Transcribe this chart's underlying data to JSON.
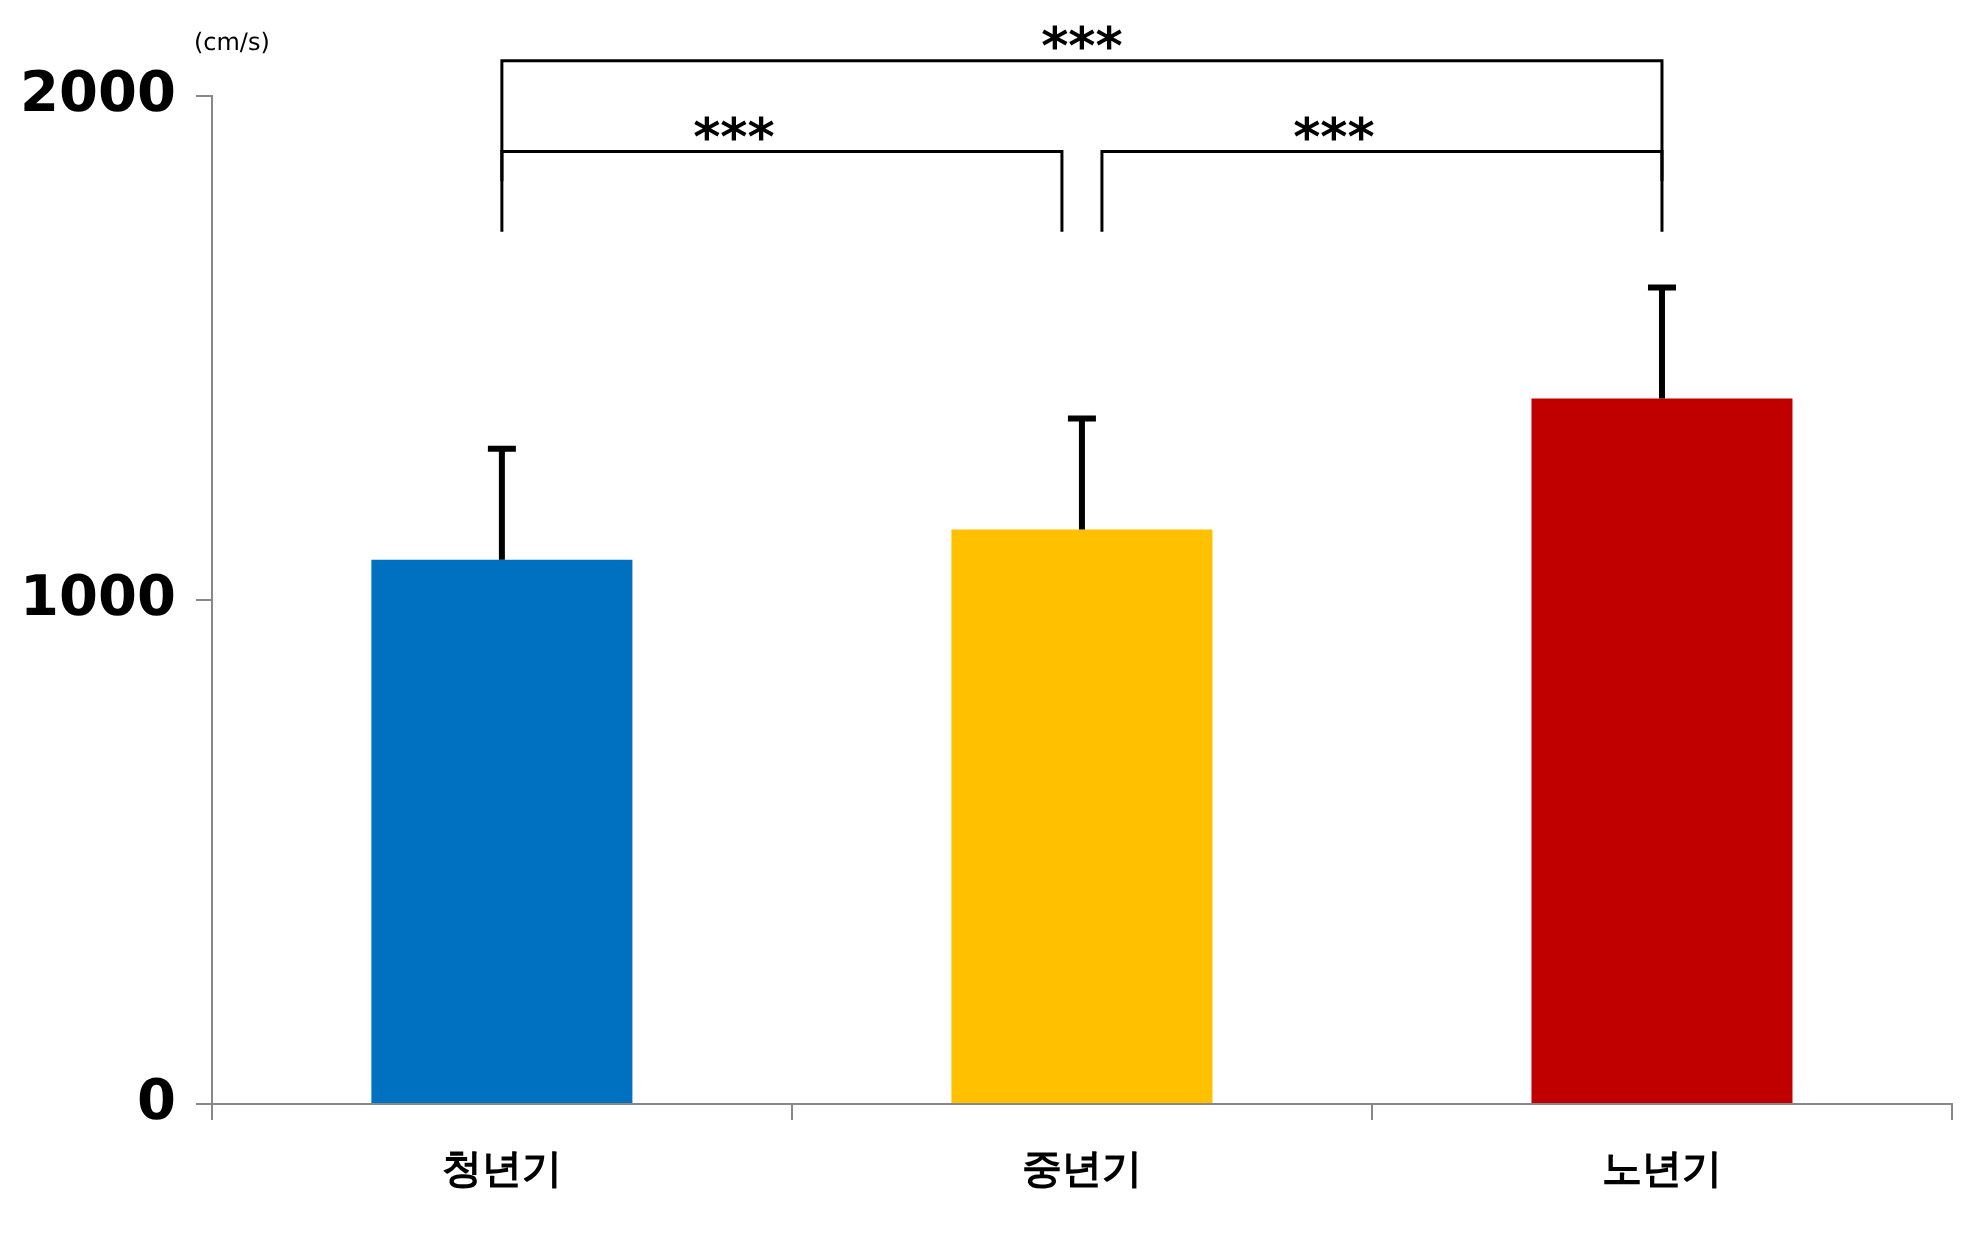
{
  "chart_data": {
    "type": "bar",
    "ylabel": "(cm/s)",
    "categories": [
      "청년기",
      "중년기",
      "노년기"
    ],
    "values": [
      1080,
      1140,
      1400
    ],
    "colors": [
      "#0070c0",
      "#ffc000",
      "#c00000"
    ],
    "errors": [
      [
        1080,
        1300
      ],
      [
        1140,
        1360
      ],
      [
        1400,
        1620
      ]
    ],
    "ylim": [
      0,
      2000
    ],
    "yticks": [
      0,
      1000,
      2000
    ],
    "grid": false,
    "legend": false,
    "annotations": [
      "***",
      "***",
      "***"
    ]
  }
}
